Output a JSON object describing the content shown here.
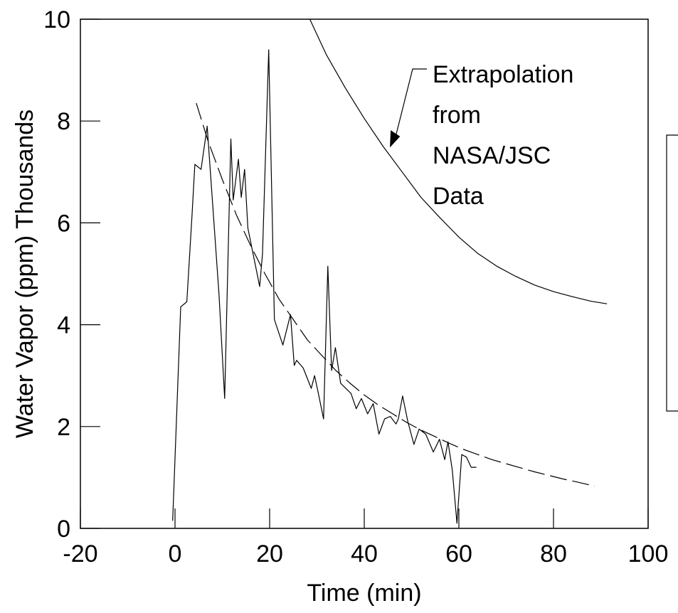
{
  "chart_data": {
    "type": "line",
    "xlabel": "Time (min)",
    "ylabel": "Water Vapor (ppm) Thousands",
    "xlim": [
      -20,
      100
    ],
    "ylim": [
      0,
      10
    ],
    "xticks": [
      -20,
      0,
      20,
      40,
      60,
      80,
      100
    ],
    "yticks": [
      0,
      2,
      4,
      6,
      8,
      10
    ],
    "grid": false,
    "annotation": {
      "lines": [
        "Extrapolation",
        "from",
        "NASA/JSC",
        "Data"
      ],
      "arrow_target": [
        45.5,
        7.5
      ]
    },
    "series": [
      {
        "style": "solid",
        "x": [
          -0.5,
          1.2,
          2.5,
          3.6,
          4.2,
          5.5,
          6.8,
          9.3,
          10.5,
          11.8,
          12.3,
          13.4,
          14.0,
          14.7,
          15.4,
          17.9,
          18.5,
          19.8,
          21.0,
          22.8,
          24.4,
          25.2,
          25.7,
          27.1,
          28.8,
          29.5,
          30.3,
          31.4,
          32.3,
          33.1,
          33.9,
          35.0,
          37.2,
          38.3,
          39.4,
          40.7,
          41.9,
          43.1,
          44.3,
          45.5,
          46.7,
          47.2,
          48.1,
          49.2,
          50.5,
          51.6,
          53.0,
          54.6,
          55.9,
          57.0,
          57.7,
          58.6,
          59.6,
          60.6,
          61.6,
          62.6,
          63.7
        ],
        "y": [
          0.15,
          4.35,
          4.45,
          6.15,
          7.15,
          7.05,
          7.9,
          4.6,
          2.55,
          7.65,
          6.45,
          7.25,
          6.5,
          7.05,
          5.9,
          4.75,
          5.4,
          9.4,
          4.1,
          3.6,
          4.2,
          3.2,
          3.3,
          3.15,
          2.75,
          3.0,
          2.65,
          2.15,
          5.15,
          3.1,
          3.55,
          2.85,
          2.65,
          2.35,
          2.55,
          2.25,
          2.45,
          1.85,
          2.15,
          2.2,
          2.05,
          2.15,
          2.6,
          2.1,
          1.65,
          1.95,
          1.85,
          1.5,
          1.75,
          1.35,
          1.7,
          1.15,
          0.1,
          1.45,
          1.4,
          1.2,
          1.2
        ]
      },
      {
        "style": "dashed",
        "x": [
          4.5,
          7.0,
          10.0,
          13.0,
          16.0,
          19.0,
          22.0,
          25.0,
          28.0,
          31.0,
          34.0,
          37.0,
          40.0,
          43.0,
          46.0,
          49.0,
          52.0,
          55.0,
          58.0,
          61.0,
          64.0,
          67.0,
          70.0,
          73.0,
          76.0,
          79.0,
          82.0,
          85.0,
          88.7
        ],
        "y": [
          8.35,
          7.6,
          6.85,
          6.15,
          5.55,
          5.0,
          4.5,
          4.1,
          3.7,
          3.4,
          3.1,
          2.85,
          2.62,
          2.42,
          2.25,
          2.08,
          1.93,
          1.8,
          1.67,
          1.55,
          1.45,
          1.35,
          1.27,
          1.19,
          1.11,
          1.04,
          0.97,
          0.91,
          0.83
        ]
      },
      {
        "style": "solid",
        "x": [
          28.5,
          32.0,
          36.0,
          40.0,
          44.0,
          48.0,
          52.0,
          56.0,
          60.0,
          64.0,
          68.0,
          72.0,
          76.0,
          80.0,
          84.0,
          88.0,
          91.3
        ],
        "y": [
          10.0,
          9.3,
          8.65,
          8.05,
          7.5,
          7.0,
          6.5,
          6.1,
          5.72,
          5.4,
          5.15,
          4.95,
          4.78,
          4.65,
          4.55,
          4.46,
          4.41
        ]
      }
    ]
  },
  "side_box": {
    "visible": true
  }
}
